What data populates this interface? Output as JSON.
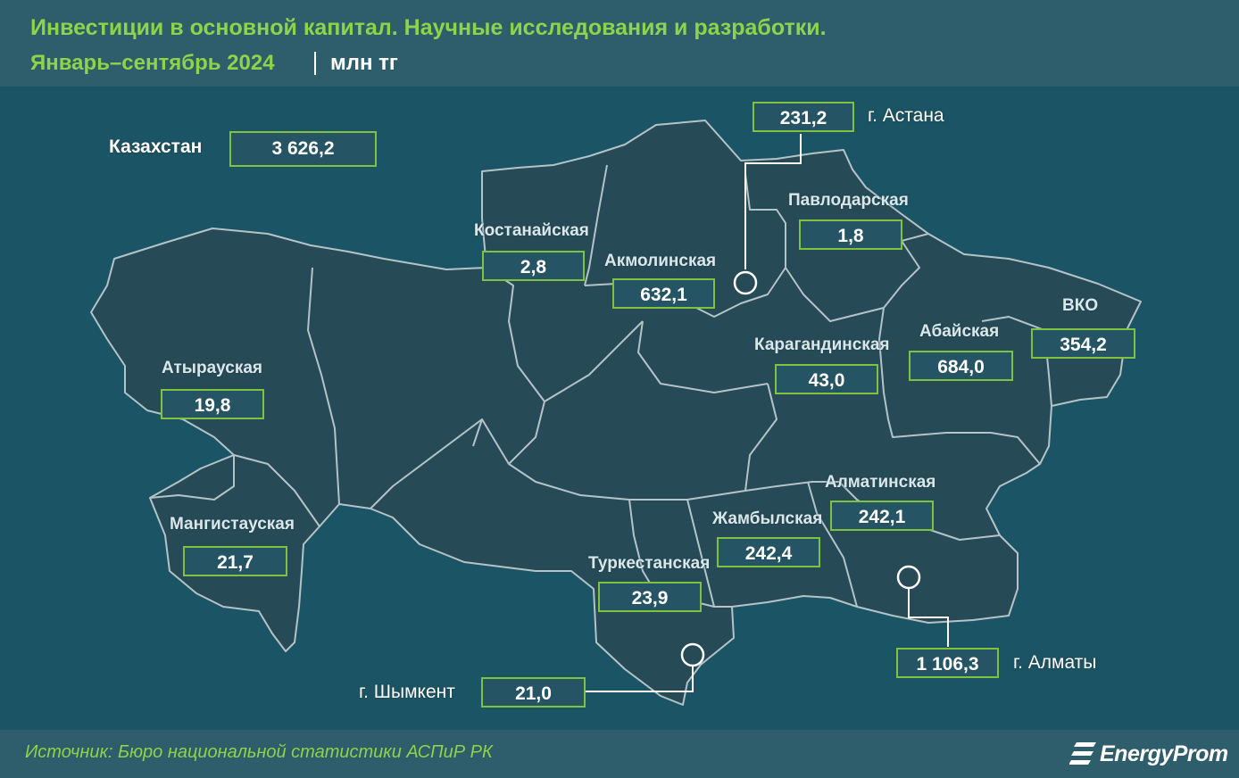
{
  "title": "Инвестиции в основной капитал. Научные исследования и разработки.",
  "subtitle": "Январь–сентябрь 2024",
  "unit": "млн тг",
  "total": {
    "label": "Казахстан",
    "value": "3 626,2"
  },
  "regions": {
    "astana": {
      "label": "г. Астана",
      "value": "231,2"
    },
    "pavlodar": {
      "label": "Павлодарская",
      "value": "1,8"
    },
    "kostanay": {
      "label": "Костанайская",
      "value": "2,8"
    },
    "akmola": {
      "label": "Акмолинская",
      "value": "632,1"
    },
    "karaganda": {
      "label": "Карагандинская",
      "value": "43,0"
    },
    "abai": {
      "label": "Абайская",
      "value": "684,0"
    },
    "vko": {
      "label": "ВКО",
      "value": "354,2"
    },
    "atyrau": {
      "label": "Атырауская",
      "value": "19,8"
    },
    "mangistau": {
      "label": "Мангистауская",
      "value": "21,7"
    },
    "almaty_region": {
      "label": "Алматинская",
      "value": "242,1"
    },
    "zhambyl": {
      "label": "Жамбылская",
      "value": "242,4"
    },
    "turkestan": {
      "label": "Туркестанская",
      "value": "23,9"
    },
    "almaty_city": {
      "label": "г. Алматы",
      "value": "1 106,3"
    },
    "shymkent": {
      "label": "г. Шымкент",
      "value": "21,0"
    }
  },
  "source": "Источник: Бюро национальной статистики АСПиР РК",
  "logo": "EnergyProm",
  "colors": {
    "accent": "#8ed34a",
    "box_border": "#7ec240",
    "background": "#174e5e",
    "header": "#2e5d6c",
    "map_fill": "#254f5b",
    "border": "#b9c7cc"
  }
}
